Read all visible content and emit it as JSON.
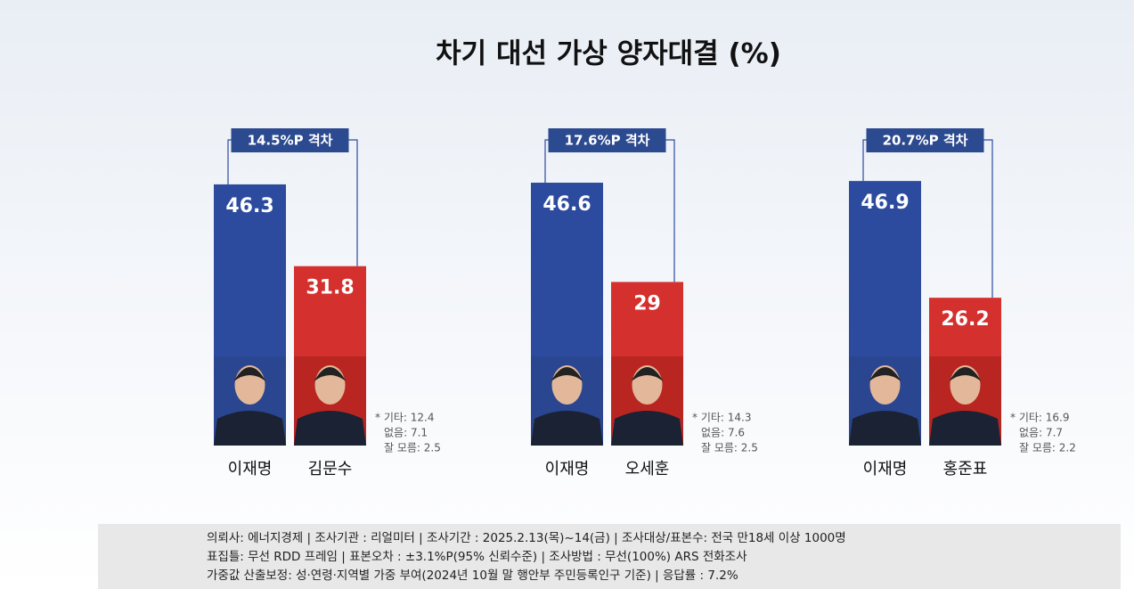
{
  "chart_data": {
    "type": "bar",
    "title": "차기 대선 가상 양자대결 (%)",
    "colors": [
      "#2c4b9e",
      "#d3302e"
    ],
    "groups": [
      {
        "gap_label": "14.5%P 격차",
        "categories": [
          "이재명",
          "김문수"
        ],
        "values": [
          46.3,
          31.8
        ],
        "notes": [
          "* 기타: 12.4",
          "없음: 7.1",
          "잘 모름: 2.5"
        ]
      },
      {
        "gap_label": "17.6%P 격차",
        "categories": [
          "이재명",
          "오세훈"
        ],
        "values": [
          46.6,
          29.0
        ],
        "notes": [
          "* 기타: 14.3",
          "없음: 7.6",
          "잘 모름: 2.5"
        ]
      },
      {
        "gap_label": "20.7%P 격차",
        "categories": [
          "이재명",
          "홍준표"
        ],
        "values": [
          46.9,
          26.2
        ],
        "notes": [
          "* 기타: 16.9",
          "없음: 7.7",
          "잘 모름: 2.2"
        ]
      }
    ]
  },
  "footer": [
    "의뢰사: 에너지경제 | 조사기관 : 리얼미터  |  조사기간 : 2025.2.13(목)~14(금) | 조사대상/표본수:  전국 만18세 이상 1000명",
    "표집틀: 무선 RDD 프레임 | 표본오차 : ±3.1%P(95%  신뢰수준) | 조사방법 : 무선(100%)  ARS 전화조사",
    "가중값 산출보정:  성·연령·지역별  가중 부여(2024년  10월 말 행안부  주민등록인구  기준) | 응답률 : 7.2%"
  ]
}
